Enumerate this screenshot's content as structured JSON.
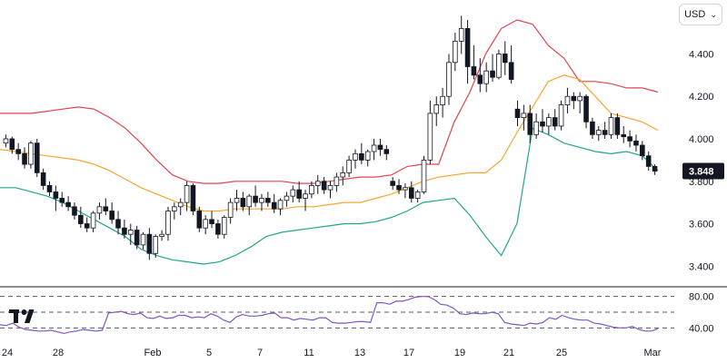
{
  "currency_selector": {
    "label": "USD",
    "icon": "chevron-down-icon"
  },
  "brand": {
    "logo": "tradingview-logo"
  },
  "colors": {
    "candle": "#131722",
    "upper_band": "#e0454e",
    "basis": "#f7a631",
    "lower_band": "#22a68a",
    "rsi": "#7e57c2",
    "last_price_tag": "#131722",
    "grid_dash": "#555b6b"
  },
  "chart_data": [
    {
      "type": "candlestick",
      "overlay": "Bollinger Bands",
      "y_axis": {
        "ticks": [
          "3.400",
          "3.600",
          "3.800",
          "4.000",
          "4.200",
          "4.400"
        ],
        "ylim": [
          3.32,
          4.62
        ]
      },
      "x_axis": {
        "ticks": [
          "24",
          "28",
          "Feb",
          "5",
          "7",
          "11",
          "13",
          "17",
          "19",
          "21",
          "25",
          "Mar"
        ]
      },
      "last_price": {
        "label": "3.848",
        "value": 3.848
      },
      "grid": false,
      "candles": [
        [
          3.98,
          4.02,
          3.96,
          4.0
        ],
        [
          4.0,
          4.01,
          3.93,
          3.95
        ],
        [
          3.95,
          3.98,
          3.9,
          3.93
        ],
        [
          3.93,
          3.96,
          3.86,
          3.88
        ],
        [
          3.88,
          3.99,
          3.86,
          3.98
        ],
        [
          3.98,
          4.0,
          3.82,
          3.84
        ],
        [
          3.84,
          3.86,
          3.76,
          3.78
        ],
        [
          3.78,
          3.8,
          3.73,
          3.75
        ],
        [
          3.75,
          3.78,
          3.66,
          3.72
        ],
        [
          3.72,
          3.75,
          3.68,
          3.7
        ],
        [
          3.7,
          3.73,
          3.66,
          3.68
        ],
        [
          3.68,
          3.7,
          3.62,
          3.64
        ],
        [
          3.64,
          3.68,
          3.58,
          3.6
        ],
        [
          3.6,
          3.63,
          3.56,
          3.58
        ],
        [
          3.58,
          3.66,
          3.56,
          3.65
        ],
        [
          3.65,
          3.7,
          3.62,
          3.68
        ],
        [
          3.68,
          3.72,
          3.64,
          3.66
        ],
        [
          3.66,
          3.7,
          3.6,
          3.62
        ],
        [
          3.62,
          3.66,
          3.55,
          3.58
        ],
        [
          3.58,
          3.62,
          3.53,
          3.55
        ],
        [
          3.55,
          3.6,
          3.5,
          3.57
        ],
        [
          3.57,
          3.59,
          3.48,
          3.5
        ],
        [
          3.5,
          3.56,
          3.48,
          3.55
        ],
        [
          3.55,
          3.58,
          3.43,
          3.46
        ],
        [
          3.46,
          3.55,
          3.44,
          3.54
        ],
        [
          3.54,
          3.57,
          3.52,
          3.55
        ],
        [
          3.55,
          3.68,
          3.52,
          3.66
        ],
        [
          3.66,
          3.7,
          3.62,
          3.68
        ],
        [
          3.68,
          3.72,
          3.64,
          3.7
        ],
        [
          3.7,
          3.8,
          3.66,
          3.78
        ],
        [
          3.78,
          3.79,
          3.64,
          3.66
        ],
        [
          3.66,
          3.68,
          3.56,
          3.58
        ],
        [
          3.58,
          3.64,
          3.55,
          3.62
        ],
        [
          3.62,
          3.66,
          3.58,
          3.6
        ],
        [
          3.6,
          3.62,
          3.53,
          3.55
        ],
        [
          3.55,
          3.64,
          3.53,
          3.63
        ],
        [
          3.63,
          3.72,
          3.6,
          3.7
        ],
        [
          3.7,
          3.76,
          3.66,
          3.72
        ],
        [
          3.72,
          3.75,
          3.66,
          3.68
        ],
        [
          3.68,
          3.74,
          3.64,
          3.73
        ],
        [
          3.73,
          3.78,
          3.68,
          3.7
        ],
        [
          3.7,
          3.74,
          3.66,
          3.72
        ],
        [
          3.72,
          3.75,
          3.68,
          3.7
        ],
        [
          3.7,
          3.74,
          3.65,
          3.67
        ],
        [
          3.67,
          3.72,
          3.64,
          3.71
        ],
        [
          3.71,
          3.75,
          3.68,
          3.73
        ],
        [
          3.73,
          3.78,
          3.7,
          3.76
        ],
        [
          3.76,
          3.8,
          3.7,
          3.72
        ],
        [
          3.72,
          3.76,
          3.66,
          3.74
        ],
        [
          3.74,
          3.8,
          3.72,
          3.78
        ],
        [
          3.78,
          3.83,
          3.74,
          3.8
        ],
        [
          3.8,
          3.82,
          3.74,
          3.76
        ],
        [
          3.76,
          3.8,
          3.72,
          3.78
        ],
        [
          3.78,
          3.84,
          3.75,
          3.82
        ],
        [
          3.82,
          3.87,
          3.78,
          3.84
        ],
        [
          3.84,
          3.92,
          3.82,
          3.9
        ],
        [
          3.9,
          3.95,
          3.86,
          3.93
        ],
        [
          3.93,
          3.98,
          3.88,
          3.9
        ],
        [
          3.9,
          3.95,
          3.87,
          3.94
        ],
        [
          3.94,
          4.0,
          3.9,
          3.97
        ],
        [
          3.97,
          4.0,
          3.92,
          3.95
        ],
        [
          3.95,
          3.97,
          3.9,
          3.93
        ],
        [
          3.8,
          3.82,
          3.76,
          3.78
        ],
        [
          3.78,
          3.81,
          3.74,
          3.76
        ],
        [
          3.76,
          3.79,
          3.72,
          3.77
        ],
        [
          3.77,
          3.8,
          3.7,
          3.72
        ],
        [
          3.72,
          3.76,
          3.7,
          3.75
        ],
        [
          3.75,
          3.92,
          3.74,
          3.9
        ],
        [
          3.9,
          4.18,
          3.88,
          4.12
        ],
        [
          4.12,
          4.2,
          4.06,
          4.16
        ],
        [
          4.16,
          4.24,
          4.1,
          4.2
        ],
        [
          4.2,
          4.4,
          4.16,
          4.36
        ],
        [
          4.36,
          4.5,
          4.32,
          4.46
        ],
        [
          4.46,
          4.58,
          4.4,
          4.52
        ],
        [
          4.52,
          4.56,
          4.26,
          4.34
        ],
        [
          4.34,
          4.44,
          4.28,
          4.3
        ],
        [
          4.3,
          4.38,
          4.22,
          4.26
        ],
        [
          4.26,
          4.36,
          4.22,
          4.32
        ],
        [
          4.32,
          4.4,
          4.27,
          4.29
        ],
        [
          4.29,
          4.42,
          4.28,
          4.4
        ],
        [
          4.4,
          4.46,
          4.3,
          4.36
        ],
        [
          4.36,
          4.44,
          4.26,
          4.28
        ],
        [
          4.14,
          4.18,
          4.06,
          4.1
        ],
        [
          4.1,
          4.16,
          4.04,
          4.12
        ],
        [
          4.12,
          4.16,
          3.98,
          4.02
        ],
        [
          4.02,
          4.12,
          4.0,
          4.08
        ],
        [
          4.08,
          4.14,
          4.03,
          4.06
        ],
        [
          4.06,
          4.12,
          4.02,
          4.1
        ],
        [
          4.1,
          4.14,
          4.04,
          4.06
        ],
        [
          4.06,
          4.18,
          4.04,
          4.16
        ],
        [
          4.16,
          4.24,
          4.12,
          4.2
        ],
        [
          4.2,
          4.22,
          4.14,
          4.18
        ],
        [
          4.18,
          4.22,
          4.12,
          4.2
        ],
        [
          4.2,
          4.21,
          4.05,
          4.08
        ],
        [
          4.08,
          4.1,
          4.0,
          4.02
        ],
        [
          4.02,
          4.06,
          3.99,
          4.04
        ],
        [
          4.04,
          4.08,
          4.0,
          4.02
        ],
        [
          4.02,
          4.12,
          4.0,
          4.1
        ],
        [
          4.1,
          4.12,
          4.0,
          4.02
        ],
        [
          4.02,
          4.06,
          3.98,
          4.01
        ],
        [
          4.01,
          4.04,
          3.96,
          3.99
        ],
        [
          3.99,
          4.02,
          3.94,
          3.97
        ],
        [
          3.97,
          3.99,
          3.9,
          3.92
        ],
        [
          3.92,
          3.94,
          3.85,
          3.87
        ],
        [
          3.87,
          3.88,
          3.83,
          3.848
        ]
      ],
      "series": [
        {
          "values": [
            4.12,
            4.12,
            4.12,
            4.13,
            4.14,
            4.15,
            4.14,
            4.1,
            4.05,
            3.98,
            3.9,
            3.83,
            3.8,
            3.79,
            3.79,
            3.8,
            3.8,
            3.8,
            3.8,
            3.79,
            3.79,
            3.8,
            3.81,
            3.82,
            3.82,
            3.83,
            3.87,
            3.88,
            3.88,
            4.08,
            4.22,
            4.4,
            4.52,
            4.56,
            4.54,
            4.44,
            4.38,
            4.27,
            4.27,
            4.26,
            4.24,
            4.24,
            4.22
          ]
        },
        {
          "values": [
            3.95,
            3.94,
            3.93,
            3.92,
            3.91,
            3.9,
            3.88,
            3.85,
            3.81,
            3.77,
            3.74,
            3.71,
            3.68,
            3.66,
            3.66,
            3.67,
            3.67,
            3.67,
            3.67,
            3.68,
            3.68,
            3.69,
            3.7,
            3.7,
            3.72,
            3.74,
            3.77,
            3.8,
            3.82,
            3.83,
            3.84,
            3.84,
            3.9,
            4.03,
            4.15,
            4.27,
            4.3,
            4.28,
            4.2,
            4.12,
            4.1,
            4.08,
            4.04
          ]
        },
        {
          "values": [
            3.77,
            3.77,
            3.75,
            3.73,
            3.7,
            3.66,
            3.62,
            3.58,
            3.54,
            3.48,
            3.45,
            3.43,
            3.42,
            3.41,
            3.42,
            3.45,
            3.49,
            3.54,
            3.56,
            3.57,
            3.58,
            3.59,
            3.6,
            3.6,
            3.61,
            3.63,
            3.66,
            3.7,
            3.71,
            3.72,
            3.64,
            3.54,
            3.45,
            3.6,
            4.05,
            4.02,
            3.98,
            3.96,
            3.94,
            3.93,
            3.94,
            3.92,
            3.85
          ]
        }
      ]
    },
    {
      "type": "line",
      "indicator": "RSI",
      "y_axis": {
        "ticks": [
          "80.00",
          "40.00"
        ],
        "ylim": [
          30,
          90
        ]
      },
      "reference_lines": [
        80,
        60,
        40
      ],
      "series": [
        {
          "values": [
            44,
            43,
            46,
            41,
            38,
            37,
            36,
            36,
            37,
            35,
            33,
            35,
            36,
            38,
            37,
            36,
            37,
            59,
            60,
            61,
            58,
            57,
            59,
            53,
            52,
            55,
            52,
            53,
            56,
            56,
            53,
            54,
            53,
            58,
            55,
            50,
            47,
            54,
            57,
            55,
            55,
            56,
            58,
            59,
            53,
            53,
            50,
            52,
            51,
            50,
            53,
            53,
            47,
            46,
            46,
            47,
            48,
            48,
            47,
            72,
            72,
            70,
            74,
            74,
            76,
            79,
            80,
            80,
            76,
            70,
            69,
            65,
            58,
            57,
            59,
            58,
            58,
            60,
            58,
            47,
            45,
            44,
            43,
            46,
            45,
            47,
            53,
            51,
            56,
            53,
            51,
            50,
            50,
            46,
            45,
            43,
            41,
            40,
            40,
            42,
            38,
            36,
            36,
            39
          ]
        }
      ]
    }
  ]
}
